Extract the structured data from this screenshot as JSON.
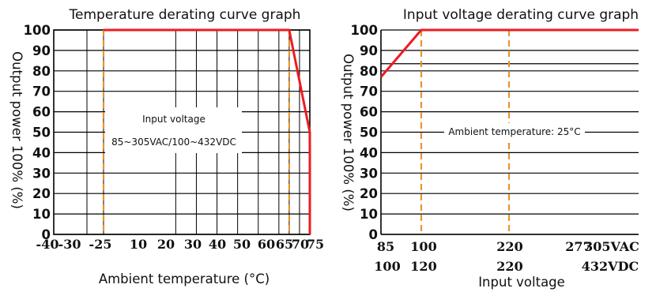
{
  "chart_data": [
    {
      "type": "line",
      "title": "Temperature derating curve graph",
      "xlabel": "Ambient temperature (°C)",
      "ylabel": "Output power 100% (%)",
      "x_ticks": [
        {
          "label": "-40",
          "x": -40,
          "highlight": false,
          "axis_only": true
        },
        {
          "label": "-30",
          "x": -30,
          "highlight": false
        },
        {
          "label": "-25",
          "x": -25,
          "highlight": true
        },
        {
          "label": "10",
          "x": 10,
          "highlight": false
        },
        {
          "label": "20",
          "x": 20,
          "highlight": false
        },
        {
          "label": "30",
          "x": 30,
          "highlight": false
        },
        {
          "label": "40",
          "x": 40,
          "highlight": false
        },
        {
          "label": "50",
          "x": 50,
          "highlight": false
        },
        {
          "label": "60",
          "x": 60,
          "highlight": false
        },
        {
          "label": "65",
          "x": 65,
          "highlight": true
        },
        {
          "label": "70",
          "x": 70,
          "highlight": false
        },
        {
          "label": "75",
          "x": 75,
          "highlight": true
        }
      ],
      "y_ticks": [
        "0",
        "10",
        "20",
        "30",
        "40",
        "50",
        "60",
        "70",
        "80",
        "90",
        "100"
      ],
      "ylim": [
        0,
        100
      ],
      "series": [
        {
          "x": [
            -25,
            65,
            75,
            75
          ],
          "y": [
            100,
            100,
            50,
            0
          ]
        }
      ],
      "marker_lines_x": [
        -25,
        65
      ],
      "annotation": [
        "Input voltage",
        "85~305VAC/100~432VDC"
      ],
      "colors": {
        "curve": "#ee1b22",
        "marker": "#e8952f",
        "highlight_text": "#e62a2a"
      }
    },
    {
      "type": "line",
      "title": "Input voltage derating curve graph",
      "xlabel": "Input voltage",
      "ylabel": "Output power 100% (%)",
      "x_ticks_row1": [
        {
          "label": "85",
          "highlight": false
        },
        {
          "label": "100",
          "highlight": true
        },
        {
          "label": "220",
          "highlight": false
        },
        {
          "label": "277",
          "highlight": true
        },
        {
          "label": "305VAC",
          "highlight": false
        }
      ],
      "x_ticks_row2": [
        {
          "label": "100",
          "highlight": false
        },
        {
          "label": "120",
          "highlight": true
        },
        {
          "label": "220",
          "highlight": false
        },
        {
          "label": "432VDC",
          "highlight": false
        }
      ],
      "y_ticks": [
        "0",
        "10",
        "20",
        "30",
        "40",
        "50",
        "60",
        "70",
        "80",
        "90",
        "100"
      ],
      "ylim": [
        0,
        100
      ],
      "series": [
        {
          "x_vac": [
            85,
            100,
            305
          ],
          "y": [
            77,
            100,
            100
          ]
        }
      ],
      "marker_lines_x_vac": [
        100,
        220
      ],
      "annotation": [
        "Ambient temperature: 25°C"
      ],
      "colors": {
        "curve": "#ee1b22",
        "marker": "#e8952f",
        "highlight_text": "#e62a2a"
      }
    }
  ]
}
